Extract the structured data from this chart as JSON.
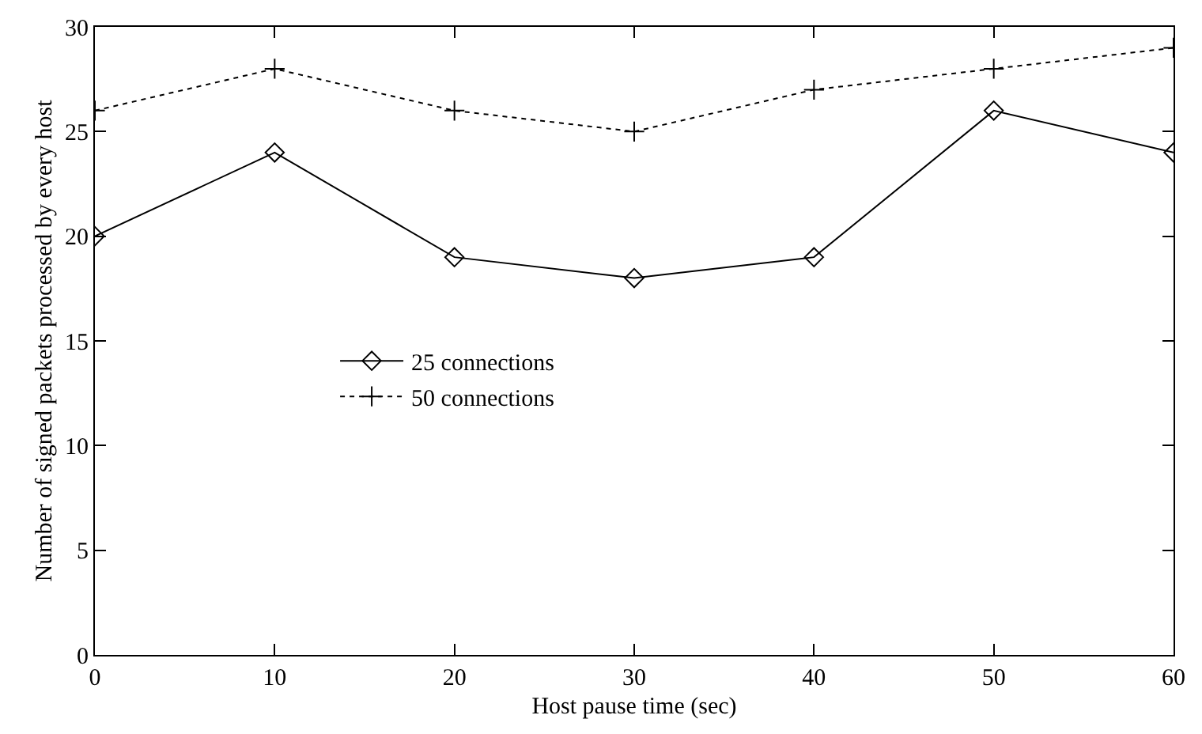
{
  "chart_data": {
    "type": "line",
    "xlabel": "Host pause time (sec)",
    "ylabel": "Number of signed packets processed by every host",
    "x": [
      0,
      10,
      20,
      30,
      40,
      50,
      60
    ],
    "series": [
      {
        "name": "25 connections",
        "color": "#000000",
        "marker": "diamond",
        "line_style": "solid",
        "values": [
          20,
          24,
          19,
          18,
          19,
          26,
          24
        ]
      },
      {
        "name": "50 connections",
        "color": "#000000",
        "marker": "cross",
        "line_style": "dotted",
        "values": [
          26,
          28,
          26,
          25,
          27,
          28,
          29
        ]
      }
    ],
    "xlim": [
      0,
      60
    ],
    "xticks": [
      0,
      10,
      20,
      30,
      40,
      50,
      60
    ],
    "ylim": [
      0,
      30
    ],
    "yticks": [
      0,
      5,
      10,
      15,
      20,
      25,
      30
    ],
    "legend": "left"
  }
}
